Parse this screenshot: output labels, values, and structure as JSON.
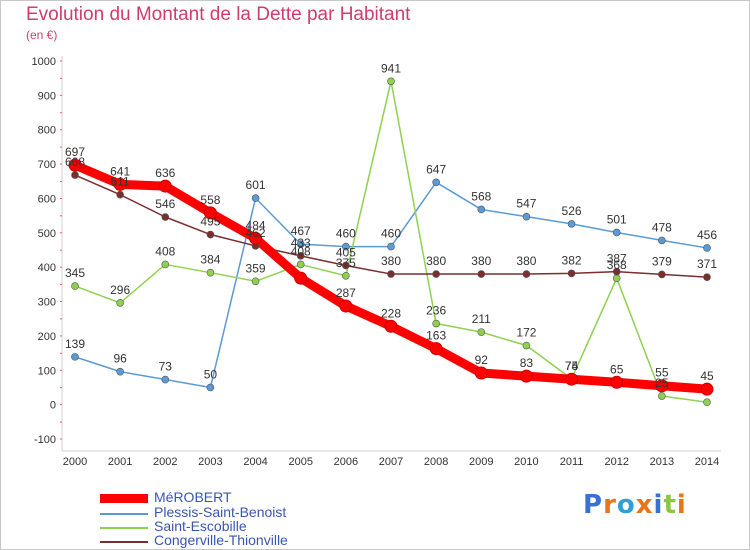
{
  "chart_data": {
    "type": "line",
    "title": "Evolution du Montant de la Dette par Habitant",
    "subtitle": "(en €)",
    "x": [
      "2000",
      "2001",
      "2002",
      "2003",
      "2004",
      "2005",
      "2006",
      "2007",
      "2008",
      "2009",
      "2010",
      "2011",
      "2012",
      "2013",
      "2014"
    ],
    "ylim": [
      -100,
      1000
    ],
    "yticks": [
      -100,
      0,
      100,
      200,
      300,
      400,
      500,
      600,
      700,
      800,
      900,
      1000
    ],
    "grid": false,
    "legend_position": "bottom-left",
    "series": [
      {
        "name": "MéROBERT",
        "color": "#ff0000",
        "values": [
          697,
          641,
          636,
          558,
          484,
          368,
          287,
          228,
          163,
          92,
          83,
          74,
          65,
          55,
          45
        ],
        "labels": [
          "697",
          "641",
          "636",
          "558",
          "484",
          "",
          "287",
          "228",
          "163",
          "92",
          "83",
          "74",
          "65",
          "55",
          "45"
        ]
      },
      {
        "name": "Plessis-Saint-Benoist",
        "color": "#5b9bd5",
        "values": [
          139,
          96,
          73,
          50,
          601,
          467,
          460,
          460,
          647,
          568,
          547,
          526,
          501,
          478,
          456
        ],
        "labels": [
          "139",
          "96",
          "73",
          "50",
          "601",
          "467",
          "460",
          "460",
          "647",
          "568",
          "547",
          "526",
          "501",
          "478",
          "456"
        ]
      },
      {
        "name": "Saint-Escobille",
        "color": "#8fd14f",
        "values": [
          345,
          296,
          408,
          384,
          359,
          408,
          375,
          941,
          236,
          211,
          172,
          75,
          368,
          25,
          7
        ],
        "labels": [
          "345",
          "296",
          "408",
          "384",
          "359",
          "408",
          "375",
          "941",
          "236",
          "211",
          "172",
          "75",
          "368",
          "25",
          ""
        ]
      },
      {
        "name": "Congerville-Thionville",
        "color": "#7a2e2e",
        "values": [
          668,
          611,
          546,
          495,
          462,
          433,
          405,
          380,
          380,
          380,
          380,
          382,
          387,
          379,
          371
        ],
        "labels": [
          "668",
          "611",
          "546",
          "495",
          "462",
          "433",
          "405",
          "380",
          "380",
          "380",
          "380",
          "382",
          "387",
          "379",
          "371"
        ]
      }
    ]
  },
  "logo": {
    "text": "Proxiti"
  }
}
